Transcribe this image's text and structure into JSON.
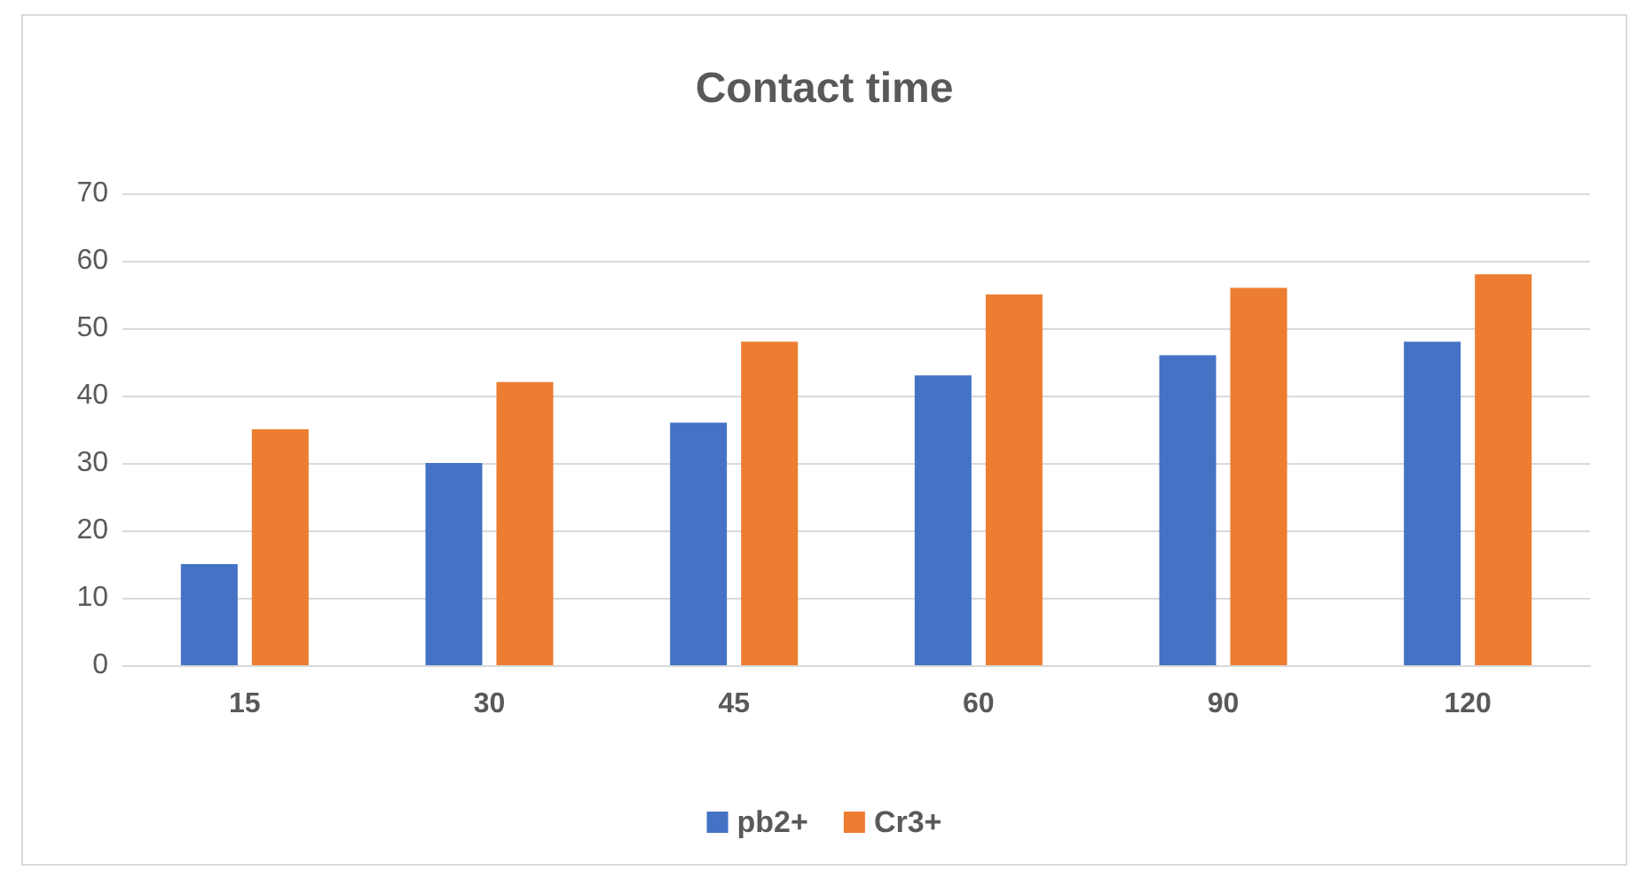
{
  "chart_data": {
    "type": "bar",
    "title": "Contact time",
    "categories": [
      "15",
      "30",
      "45",
      "60",
      "90",
      "120"
    ],
    "series": [
      {
        "name": "pb2+",
        "color": "#4472c4",
        "values": [
          15,
          30,
          36,
          43,
          46,
          48
        ]
      },
      {
        "name": "Cr3+",
        "color": "#ed7d31",
        "values": [
          35,
          42,
          48,
          55,
          56,
          58
        ]
      }
    ],
    "ylim": [
      0,
      70
    ],
    "yticks": [
      0,
      10,
      20,
      30,
      40,
      50,
      60,
      70
    ],
    "grid": "y",
    "legend": "bottom"
  }
}
